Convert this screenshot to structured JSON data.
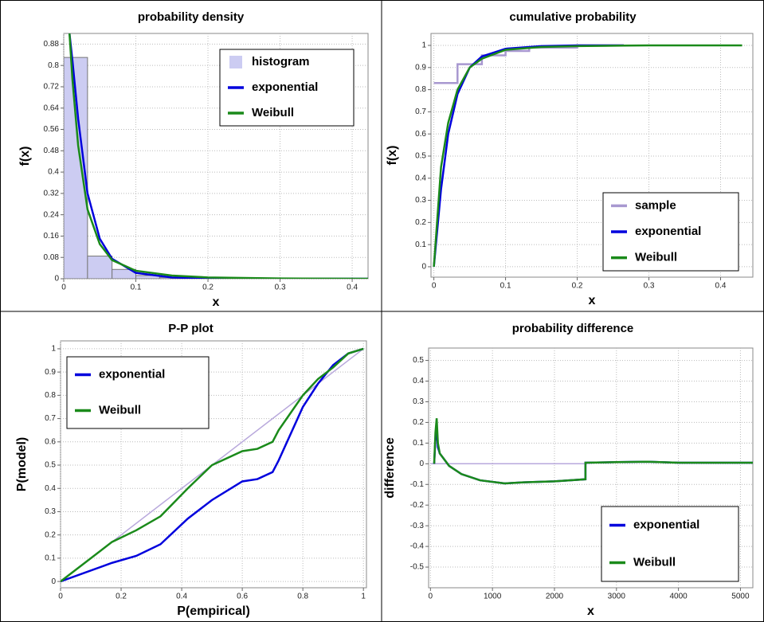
{
  "chart_data": [
    {
      "type": "line",
      "title": "probability density",
      "xlabel": "x",
      "ylabel": "f(x)",
      "xlim": [
        0,
        0.422
      ],
      "ylim": [
        0,
        0.92
      ],
      "xticks": [
        0,
        0.1,
        0.2,
        0.3,
        0.4
      ],
      "yticks": [
        0,
        0.08,
        0.16,
        0.24,
        0.32,
        0.4,
        0.48,
        0.56,
        0.64,
        0.72,
        0.8,
        0.88
      ],
      "grid": true,
      "legend": "upper right",
      "histogram": {
        "name": "histogram",
        "color": "#ccccf2",
        "bins": [
          0,
          0.033,
          0.067,
          0.1,
          0.133,
          0.167,
          0.2
        ],
        "values": [
          0.83,
          0.085,
          0.035,
          0.012,
          0.005,
          0.002
        ]
      },
      "series": [
        {
          "name": "exponential",
          "color": "#0000dd",
          "x": [
            0.008,
            0.012,
            0.02,
            0.033,
            0.05,
            0.067,
            0.1,
            0.15,
            0.2,
            0.3,
            0.422
          ],
          "values": [
            0.92,
            0.82,
            0.6,
            0.32,
            0.15,
            0.075,
            0.022,
            0.005,
            0.001,
            0,
            0
          ]
        },
        {
          "name": "Weibull",
          "color": "#1a8a1a",
          "x": [
            0.008,
            0.012,
            0.02,
            0.033,
            0.05,
            0.067,
            0.1,
            0.15,
            0.2,
            0.3,
            0.422
          ],
          "values": [
            0.92,
            0.75,
            0.5,
            0.26,
            0.13,
            0.07,
            0.03,
            0.012,
            0.005,
            0.001,
            0
          ]
        }
      ]
    },
    {
      "type": "line",
      "title": "cumulative probability",
      "xlabel": "x",
      "ylabel": "f(x)",
      "xlim": [
        -0.004,
        0.445
      ],
      "ylim": [
        -0.047,
        1.054
      ],
      "xticks": [
        0,
        0.1,
        0.2,
        0.3,
        0.4
      ],
      "yticks": [
        0,
        0.1,
        0.2,
        0.3,
        0.4,
        0.5,
        0.6,
        0.7,
        0.8,
        0.9,
        1
      ],
      "grid": true,
      "legend": "lower right",
      "series": [
        {
          "name": "sample",
          "color": "#a898d0",
          "x": [
            0,
            0.033,
            0.033,
            0.067,
            0.067,
            0.1,
            0.1,
            0.133,
            0.133,
            0.2,
            0.2,
            0.265
          ],
          "values": [
            0.83,
            0.83,
            0.915,
            0.915,
            0.955,
            0.955,
            0.975,
            0.975,
            0.99,
            0.99,
            1,
            1
          ]
        },
        {
          "name": "exponential",
          "color": "#0000dd",
          "x": [
            0,
            0.01,
            0.02,
            0.033,
            0.05,
            0.067,
            0.1,
            0.15,
            0.2,
            0.265
          ],
          "values": [
            0,
            0.35,
            0.6,
            0.78,
            0.9,
            0.95,
            0.985,
            0.997,
            1,
            1
          ]
        },
        {
          "name": "Weibull",
          "color": "#1a8a1a",
          "x": [
            0,
            0.01,
            0.02,
            0.033,
            0.05,
            0.067,
            0.1,
            0.15,
            0.2,
            0.265,
            0.3,
            0.43
          ],
          "values": [
            0,
            0.45,
            0.65,
            0.8,
            0.9,
            0.94,
            0.98,
            0.993,
            0.997,
            0.999,
            1,
            1
          ]
        }
      ]
    },
    {
      "type": "line",
      "title": "P-P plot",
      "xlabel": "P(empirical)",
      "ylabel": "P(model)",
      "xlim": [
        0,
        1.01
      ],
      "ylim": [
        -0.027,
        1.034
      ],
      "xticks": [
        0,
        0.2,
        0.4,
        0.6,
        0.8,
        1
      ],
      "yticks": [
        0,
        0.1,
        0.2,
        0.3,
        0.4,
        0.5,
        0.6,
        0.7,
        0.8,
        0.9,
        1
      ],
      "grid": true,
      "legend": "upper left",
      "series": [
        {
          "color": "#b8a8dc",
          "x": [
            0,
            1
          ],
          "values": [
            0,
            1
          ]
        },
        {
          "name": "exponential",
          "color": "#0000dd",
          "x": [
            0,
            0.17,
            0.25,
            0.33,
            0.42,
            0.5,
            0.6,
            0.65,
            0.7,
            0.72,
            0.8,
            0.85,
            0.9,
            0.95,
            1
          ],
          "values": [
            0,
            0.08,
            0.11,
            0.16,
            0.27,
            0.35,
            0.43,
            0.44,
            0.47,
            0.52,
            0.75,
            0.85,
            0.93,
            0.98,
            1
          ]
        },
        {
          "name": "Weibull",
          "color": "#1a8a1a",
          "x": [
            0,
            0.17,
            0.25,
            0.33,
            0.42,
            0.5,
            0.6,
            0.65,
            0.7,
            0.72,
            0.8,
            0.85,
            0.9,
            0.95,
            1
          ],
          "values": [
            0,
            0.17,
            0.22,
            0.28,
            0.4,
            0.5,
            0.56,
            0.57,
            0.6,
            0.65,
            0.8,
            0.87,
            0.92,
            0.98,
            1
          ]
        }
      ]
    },
    {
      "type": "line",
      "title": "probability difference",
      "xlabel": "x",
      "ylabel": "difference",
      "xlim": [
        -30,
        5200
      ],
      "ylim": [
        -0.6,
        0.56
      ],
      "xticks": [
        0,
        1000,
        2000,
        3000,
        4000,
        5000
      ],
      "yticks": [
        -0.5,
        -0.4,
        -0.3,
        -0.2,
        -0.1,
        0,
        0.1,
        0.2,
        0.3,
        0.4,
        0.5
      ],
      "grid": true,
      "legend": "lower right",
      "series": [
        {
          "color": "#b8a8dc",
          "x": [
            0,
            2500
          ],
          "values": [
            0,
            0
          ]
        },
        {
          "name": "exponential",
          "color": "#0000dd",
          "x": [
            60,
            80,
            100,
            120,
            150,
            200,
            300,
            500,
            800,
            1200,
            1500,
            2000,
            2500,
            2500,
            3000,
            3500,
            4000,
            5200
          ],
          "values": [
            0,
            0.12,
            0.17,
            0.08,
            0.05,
            0.03,
            -0.01,
            -0.05,
            -0.08,
            -0.095,
            -0.09,
            -0.085,
            -0.075,
            0.005,
            0.008,
            0.01,
            0.005,
            0.005
          ]
        },
        {
          "name": "Weibull",
          "color": "#1a8a1a",
          "x": [
            60,
            80,
            100,
            120,
            150,
            200,
            300,
            500,
            800,
            1200,
            1500,
            2000,
            2500,
            2500,
            3000,
            3500,
            4000,
            5200
          ],
          "values": [
            0,
            0.15,
            0.22,
            0.1,
            0.05,
            0.03,
            -0.01,
            -0.05,
            -0.08,
            -0.095,
            -0.09,
            -0.085,
            -0.075,
            0.005,
            0.008,
            0.01,
            0.005,
            0.005
          ]
        }
      ]
    }
  ]
}
